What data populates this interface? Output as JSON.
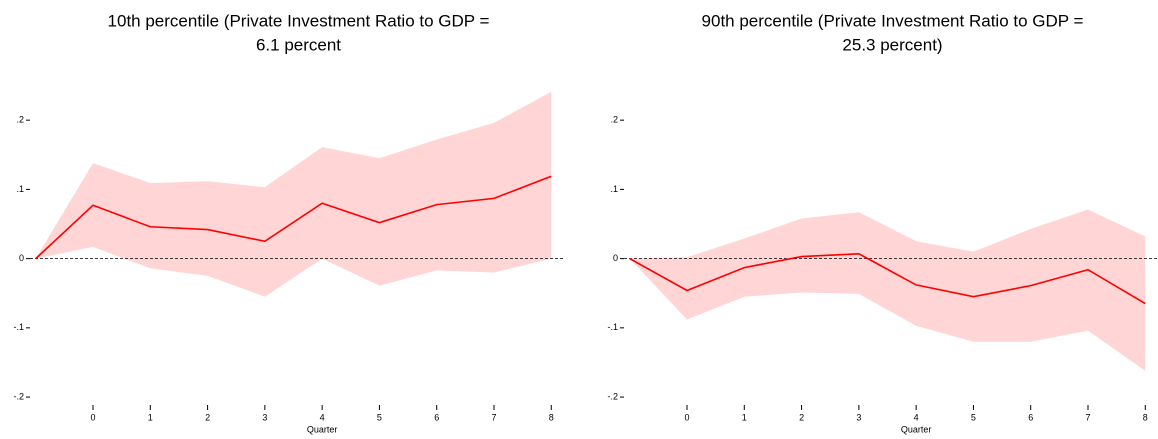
{
  "chart_data": [
    {
      "type": "band-line",
      "title": [
        "10th percentile (Private Investment Ratio to GDP =",
        "6.1 percent"
      ],
      "x_label": "Quarter",
      "x": [
        -1,
        0,
        1,
        2,
        3,
        4,
        5,
        6,
        7,
        8
      ],
      "values": [
        0,
        0.077,
        0.046,
        0.042,
        0.025,
        0.08,
        0.052,
        0.078,
        0.087,
        0.119
      ],
      "upper": [
        0,
        0.138,
        0.109,
        0.112,
        0.103,
        0.161,
        0.145,
        0.172,
        0.196,
        0.241
      ],
      "lower": [
        0,
        0.017,
        -0.014,
        -0.025,
        -0.055,
        0,
        -0.039,
        -0.017,
        -0.02,
        0
      ],
      "color": "#ff0000",
      "band_color": "#ffd5d5",
      "xlim": [
        -1.1,
        8.1
      ],
      "xticks": [
        0,
        1,
        2,
        3,
        4,
        5,
        6,
        7,
        8
      ],
      "ylim": [
        -0.21,
        0.245
      ],
      "yticks": [
        {
          "value": -0.2,
          "label": "-.2"
        },
        {
          "value": -0.1,
          "label": "-.1"
        },
        0,
        {
          "value": 0.1,
          "label": ".1"
        },
        {
          "value": 0.2,
          "label": ".2"
        }
      ],
      "zero_line": true
    },
    {
      "type": "band-line",
      "title": [
        "90th percentile (Private Investment Ratio to GDP =",
        "25.3 percent)"
      ],
      "x_label": "Quarter",
      "x": [
        -1,
        0,
        1,
        2,
        3,
        4,
        5,
        6,
        7,
        8
      ],
      "values": [
        0,
        -0.046,
        -0.013,
        0.003,
        0.007,
        -0.038,
        -0.055,
        -0.039,
        -0.016,
        -0.065
      ],
      "upper": [
        0,
        0.002,
        0.029,
        0.058,
        0.067,
        0.025,
        0.01,
        0.043,
        0.071,
        0.032
      ],
      "lower": [
        0,
        -0.088,
        -0.055,
        -0.049,
        -0.051,
        -0.097,
        -0.12,
        -0.12,
        -0.104,
        -0.162
      ],
      "color": "#ff0000",
      "band_color": "#ffd5d5",
      "xlim": [
        -1.1,
        8.1
      ],
      "xticks": [
        0,
        1,
        2,
        3,
        4,
        5,
        6,
        7,
        8
      ],
      "ylim": [
        -0.21,
        0.245
      ],
      "yticks": [
        {
          "value": -0.2,
          "label": "-.2"
        },
        {
          "value": -0.1,
          "label": "-.1"
        },
        0,
        {
          "value": 0.1,
          "label": ".1"
        },
        {
          "value": 0.2,
          "label": ".2"
        }
      ],
      "zero_line": true
    }
  ]
}
